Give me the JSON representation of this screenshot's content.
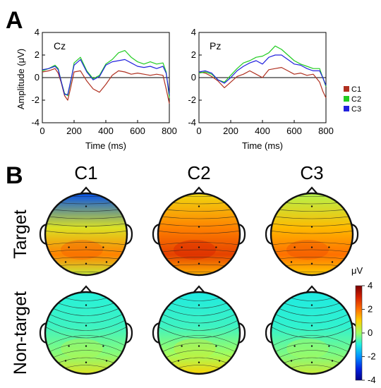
{
  "panels": {
    "a_label": "A",
    "b_label": "B"
  },
  "colors": {
    "C1": "#b03020",
    "C2": "#22cc22",
    "C3": "#2222dd"
  },
  "chart_data": [
    {
      "type": "line",
      "channel": "Cz",
      "xlabel": "Time (ms)",
      "ylabel": "Amplitude (μV)",
      "xlim": [
        0,
        800
      ],
      "ylim": [
        -4,
        4
      ],
      "xticks": [
        0,
        200,
        400,
        600,
        800
      ],
      "yticks": [
        -4,
        -2,
        0,
        2,
        4
      ],
      "x": [
        0,
        40,
        80,
        100,
        120,
        140,
        160,
        180,
        200,
        240,
        280,
        320,
        360,
        400,
        440,
        480,
        520,
        560,
        600,
        640,
        680,
        720,
        760,
        780,
        800
      ],
      "series": [
        {
          "name": "C1",
          "values": [
            0.5,
            0.6,
            0.8,
            0.4,
            -0.5,
            -1.6,
            -2.0,
            -0.8,
            0.5,
            0.6,
            -0.3,
            -1.0,
            -1.3,
            -0.6,
            0.2,
            0.6,
            0.5,
            0.3,
            0.4,
            0.3,
            0.2,
            0.3,
            0.2,
            -1.0,
            -2.3
          ]
        },
        {
          "name": "C2",
          "values": [
            0.6,
            0.8,
            1.1,
            0.8,
            -0.4,
            -1.4,
            -1.6,
            -0.3,
            1.3,
            1.8,
            0.6,
            -0.1,
            0.2,
            1.2,
            1.6,
            2.2,
            2.4,
            1.8,
            1.4,
            1.2,
            1.4,
            1.2,
            1.3,
            0.5,
            -1.8
          ]
        },
        {
          "name": "C3",
          "values": [
            0.7,
            0.8,
            1.0,
            0.7,
            -0.4,
            -1.5,
            -1.5,
            -0.2,
            1.1,
            1.6,
            0.5,
            -0.2,
            0.1,
            1.1,
            1.4,
            1.5,
            1.6,
            1.3,
            1.0,
            0.9,
            1.0,
            0.8,
            1.0,
            0.4,
            -1.5
          ]
        }
      ]
    },
    {
      "type": "line",
      "channel": "Pz",
      "xlabel": "Time (ms)",
      "ylabel": "",
      "xlim": [
        0,
        800
      ],
      "ylim": [
        -4,
        4
      ],
      "xticks": [
        0,
        200,
        400,
        600,
        800
      ],
      "yticks": [
        -4,
        -2,
        0,
        2,
        4
      ],
      "x": [
        0,
        40,
        80,
        120,
        160,
        200,
        240,
        280,
        320,
        360,
        400,
        440,
        480,
        520,
        560,
        600,
        640,
        680,
        720,
        760,
        780,
        800
      ],
      "series": [
        {
          "name": "C1",
          "values": [
            0.5,
            0.4,
            0.1,
            -0.3,
            -0.9,
            -0.4,
            0.1,
            0.3,
            0.6,
            0.3,
            0.0,
            0.7,
            0.8,
            0.9,
            0.6,
            0.3,
            0.4,
            0.2,
            0.3,
            -0.4,
            -1.2,
            -1.8
          ]
        },
        {
          "name": "C2",
          "values": [
            0.4,
            0.5,
            0.3,
            -0.2,
            -0.4,
            0.2,
            0.8,
            1.3,
            1.5,
            1.8,
            1.9,
            2.2,
            2.8,
            2.5,
            2.0,
            1.5,
            1.2,
            1.0,
            0.8,
            0.8,
            0.0,
            -0.8
          ]
        },
        {
          "name": "C3",
          "values": [
            0.5,
            0.6,
            0.4,
            -0.2,
            -0.5,
            0.0,
            0.6,
            1.0,
            1.3,
            1.5,
            1.2,
            1.8,
            2.0,
            2.0,
            1.6,
            1.2,
            1.1,
            0.8,
            0.6,
            0.6,
            0.0,
            -0.7
          ]
        }
      ]
    },
    {
      "type": "heatmap",
      "conditions": [
        "C1",
        "C2",
        "C3"
      ],
      "rows": [
        "Target",
        "Non-target"
      ],
      "colorbar": {
        "unit": "μV",
        "range": [
          -4,
          4
        ],
        "ticks": [
          "4",
          "2",
          "0",
          "-2",
          "-4"
        ]
      },
      "maps": [
        {
          "row": "Target",
          "condition": "C1",
          "frontal": -2.6,
          "central": 0.6,
          "parietal": 1.8,
          "occipital": 0.4
        },
        {
          "row": "Target",
          "condition": "C2",
          "frontal": 0.8,
          "central": 1.8,
          "parietal": 2.6,
          "occipital": 1.3
        },
        {
          "row": "Target",
          "condition": "C3",
          "frontal": 0.2,
          "central": 1.2,
          "parietal": 2.0,
          "occipital": 1.0
        },
        {
          "row": "Non-target",
          "condition": "C1",
          "frontal": -1.0,
          "central": -0.8,
          "parietal": -0.2,
          "occipital": 0.6
        },
        {
          "row": "Non-target",
          "condition": "C2",
          "frontal": -1.1,
          "central": -0.8,
          "parietal": 0.0,
          "occipital": 0.9
        },
        {
          "row": "Non-target",
          "condition": "C3",
          "frontal": -1.1,
          "central": -0.9,
          "parietal": -0.3,
          "occipital": 0.4
        }
      ]
    }
  ]
}
